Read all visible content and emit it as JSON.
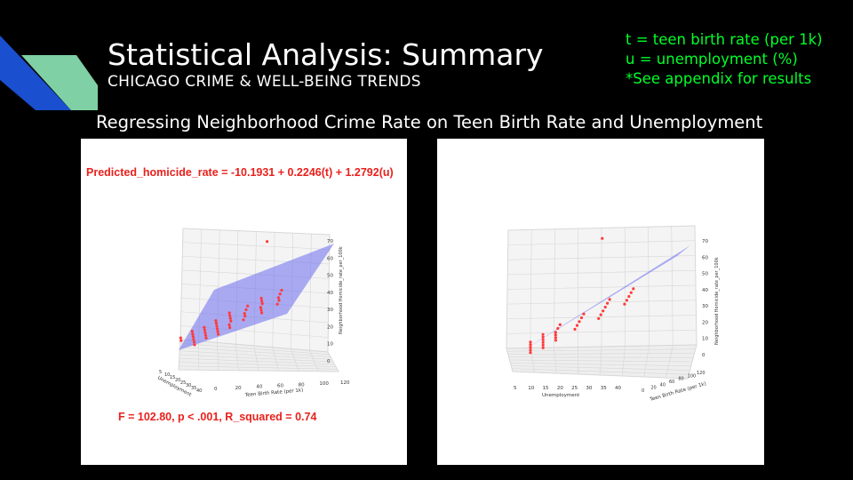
{
  "slide": {
    "title": "Statistical Analysis: Summary",
    "subtitle": "CHICAGO CRIME & WELL-BEING TRENDS",
    "legend": [
      "t = teen birth rate (per 1k)",
      "u = unemployment (%)",
      "*See appendix for results"
    ],
    "heading": "Regressing Neighborhood Crime Rate on Teen Birth Rate and Unemployment",
    "colors": {
      "background": "#000000",
      "legend_text": "#00ff2a",
      "annotation": "#e8211c",
      "plane": "#6b6bf0",
      "points": "#ff3b3b"
    }
  },
  "left_panel": {
    "equation": "Predicted_homicide_rate = -10.1931 + 0.2246(t) + 1.2792(u)",
    "stats": "F = 102.80, p < .001, R_squared = 0.74"
  },
  "chart_data": [
    {
      "type": "scatter",
      "projection": "3d",
      "x_axis": {
        "label": "Teen Birth Rate (per 1k)",
        "ticks": [
          "0",
          "20",
          "40",
          "60",
          "80",
          "100",
          "120"
        ]
      },
      "y_axis": {
        "label": "Unemployment",
        "ticks": [
          "5",
          "10",
          "15",
          "20",
          "25",
          "30",
          "35",
          "40"
        ]
      },
      "z_axis": {
        "label": "Neighborhood Homicide_rate_per_100k",
        "ticks": [
          "0",
          "10",
          "20",
          "30",
          "40",
          "50",
          "60",
          "70"
        ],
        "range": [
          0,
          70
        ]
      },
      "regression_plane": true,
      "points_z": [
        71,
        51,
        49,
        47,
        46,
        44,
        42,
        41,
        40,
        38,
        37,
        36,
        35,
        33,
        31,
        30,
        28,
        27,
        26,
        25,
        24,
        22,
        21,
        20,
        19,
        18,
        17,
        16,
        15,
        14,
        13,
        12,
        11,
        10,
        9,
        8,
        7,
        6,
        5,
        4,
        3,
        2
      ],
      "grid": true
    },
    {
      "type": "scatter",
      "projection": "3d",
      "x_axis": {
        "label": "Unemployment",
        "ticks": [
          "5",
          "10",
          "15",
          "20",
          "25",
          "30",
          "35",
          "40"
        ]
      },
      "y_axis": {
        "label": "Teen Birth Rate (per 1k)",
        "ticks": [
          "0",
          "20",
          "40",
          "60",
          "80",
          "100",
          "120"
        ]
      },
      "z_axis": {
        "label": "Neighborhood Homicide_rate_per_100k",
        "ticks": [
          "0",
          "10",
          "20",
          "30",
          "40",
          "50",
          "60",
          "70"
        ],
        "range": [
          0,
          70
        ]
      },
      "regression_plane": true,
      "points_z": [
        71,
        52,
        50,
        48,
        46,
        44,
        42,
        40,
        38,
        36,
        34,
        32,
        30,
        28,
        26,
        24,
        22,
        20,
        18,
        16,
        15,
        14,
        13,
        12,
        11,
        10,
        9,
        8,
        7,
        6,
        5,
        4,
        3,
        2
      ],
      "grid": true
    }
  ]
}
